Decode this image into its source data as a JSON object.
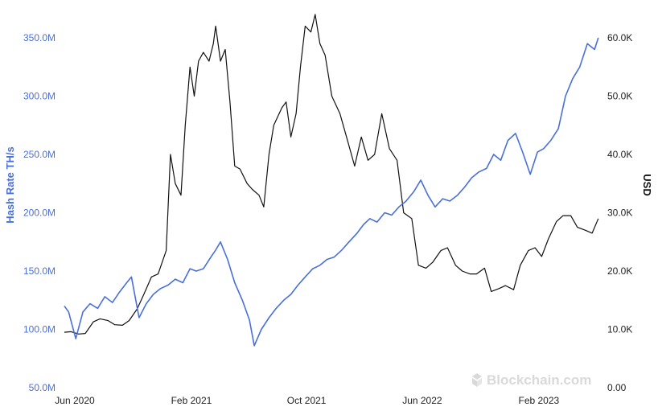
{
  "chart_data": {
    "type": "line",
    "watermark": "Blockchain.com",
    "y_left": {
      "label": "Hash Rate TH/s",
      "ticks": [
        "50.0M",
        "100.0M",
        "150.0M",
        "200.0M",
        "250.0M",
        "300.0M",
        "350.0M"
      ],
      "ylim": [
        50,
        350
      ],
      "color": "#4a6fd8"
    },
    "y_right": {
      "label": "USD",
      "ticks": [
        "0.00",
        "10.0K",
        "20.0K",
        "30.0K",
        "40.0K",
        "50.0K",
        "60.0K"
      ],
      "ylim": [
        0,
        60
      ],
      "color": "#111111"
    },
    "x_axis": {
      "ticks": [
        "Jun 2020",
        "Feb 2021",
        "Oct 2021",
        "Jun 2022",
        "Feb 2023"
      ],
      "xlim": [
        "2020-06-01",
        "2023-06-30"
      ]
    },
    "series": [
      {
        "name": "Hash Rate TH/s",
        "axis": "left",
        "color": "#4a6fd8",
        "x": [
          "2020-06-01",
          "2020-06-10",
          "2020-06-25",
          "2020-07-10",
          "2020-07-25",
          "2020-08-10",
          "2020-08-25",
          "2020-09-10",
          "2020-09-25",
          "2020-10-10",
          "2020-10-20",
          "2020-11-05",
          "2020-11-20",
          "2020-12-05",
          "2020-12-20",
          "2021-01-05",
          "2021-01-20",
          "2021-02-05",
          "2021-02-20",
          "2021-03-05",
          "2021-03-20",
          "2021-04-05",
          "2021-04-15",
          "2021-04-25",
          "2021-05-10",
          "2021-05-25",
          "2021-06-10",
          "2021-06-25",
          "2021-07-05",
          "2021-07-20",
          "2021-08-05",
          "2021-08-20",
          "2021-09-05",
          "2021-09-20",
          "2021-10-05",
          "2021-10-20",
          "2021-11-05",
          "2021-11-20",
          "2021-12-05",
          "2021-12-20",
          "2022-01-05",
          "2022-01-20",
          "2022-02-05",
          "2022-02-20",
          "2022-03-05",
          "2022-03-20",
          "2022-04-05",
          "2022-04-20",
          "2022-05-05",
          "2022-05-20",
          "2022-06-05",
          "2022-06-20",
          "2022-07-05",
          "2022-07-20",
          "2022-08-05",
          "2022-08-20",
          "2022-09-05",
          "2022-09-20",
          "2022-10-05",
          "2022-10-20",
          "2022-11-05",
          "2022-11-20",
          "2022-12-05",
          "2022-12-20",
          "2023-01-05",
          "2023-01-20",
          "2023-02-05",
          "2023-02-20",
          "2023-03-05",
          "2023-03-20",
          "2023-04-05",
          "2023-04-20",
          "2023-05-05",
          "2023-05-20",
          "2023-06-05",
          "2023-06-20",
          "2023-06-28"
        ],
        "values": [
          120,
          115,
          92,
          115,
          122,
          118,
          128,
          123,
          132,
          140,
          145,
          110,
          122,
          130,
          135,
          138,
          143,
          140,
          152,
          150,
          152,
          162,
          168,
          175,
          160,
          140,
          125,
          108,
          86,
          100,
          110,
          118,
          125,
          130,
          138,
          145,
          152,
          155,
          160,
          162,
          168,
          175,
          182,
          190,
          195,
          192,
          200,
          198,
          205,
          210,
          218,
          228,
          215,
          205,
          212,
          210,
          215,
          222,
          230,
          235,
          238,
          250,
          245,
          262,
          268,
          252,
          233,
          252,
          255,
          262,
          272,
          300,
          315,
          325,
          345,
          340,
          350
        ]
      },
      {
        "name": "USD",
        "axis": "right",
        "color": "#111111",
        "x": [
          "2020-06-01",
          "2020-06-15",
          "2020-07-01",
          "2020-07-15",
          "2020-08-01",
          "2020-08-15",
          "2020-09-01",
          "2020-09-15",
          "2020-10-01",
          "2020-10-15",
          "2020-11-01",
          "2020-11-15",
          "2020-12-01",
          "2020-12-15",
          "2021-01-01",
          "2021-01-10",
          "2021-01-20",
          "2021-02-01",
          "2021-02-10",
          "2021-02-20",
          "2021-03-01",
          "2021-03-10",
          "2021-03-20",
          "2021-04-01",
          "2021-04-10",
          "2021-04-15",
          "2021-04-25",
          "2021-05-05",
          "2021-05-15",
          "2021-05-25",
          "2021-06-05",
          "2021-06-20",
          "2021-07-01",
          "2021-07-15",
          "2021-07-25",
          "2021-08-05",
          "2021-08-15",
          "2021-09-01",
          "2021-09-10",
          "2021-09-20",
          "2021-10-01",
          "2021-10-10",
          "2021-10-20",
          "2021-11-01",
          "2021-11-10",
          "2021-11-20",
          "2021-12-01",
          "2021-12-15",
          "2022-01-01",
          "2022-01-15",
          "2022-02-01",
          "2022-02-15",
          "2022-03-01",
          "2022-03-15",
          "2022-03-30",
          "2022-04-15",
          "2022-05-01",
          "2022-05-15",
          "2022-06-01",
          "2022-06-15",
          "2022-07-01",
          "2022-07-15",
          "2022-08-01",
          "2022-08-15",
          "2022-09-01",
          "2022-09-15",
          "2022-10-01",
          "2022-10-15",
          "2022-11-01",
          "2022-11-15",
          "2022-12-01",
          "2022-12-15",
          "2023-01-01",
          "2023-01-15",
          "2023-02-01",
          "2023-02-15",
          "2023-03-01",
          "2023-03-15",
          "2023-04-01",
          "2023-04-15",
          "2023-05-01",
          "2023-05-15",
          "2023-06-01",
          "2023-06-15",
          "2023-06-28"
        ],
        "values": [
          9.5,
          9.6,
          9.2,
          9.3,
          11.3,
          11.8,
          11.5,
          10.8,
          10.7,
          11.5,
          13.5,
          16.0,
          19.0,
          19.5,
          23.5,
          40.0,
          35.0,
          33.0,
          45.0,
          55.0,
          50.0,
          56.0,
          57.5,
          56.0,
          59.0,
          62.0,
          56.0,
          58.0,
          49.0,
          38.0,
          37.5,
          35.0,
          34.0,
          33.0,
          31.0,
          40.0,
          45.0,
          48.0,
          49.0,
          43.0,
          47.0,
          55.0,
          62.0,
          61.0,
          64.0,
          59.0,
          57.0,
          50.0,
          47.0,
          43.0,
          38.0,
          43.0,
          39.0,
          40.0,
          47.0,
          41.0,
          39.0,
          30.0,
          29.0,
          21.0,
          20.5,
          21.5,
          23.5,
          24.0,
          21.0,
          20.0,
          19.5,
          19.5,
          20.5,
          16.5,
          17.0,
          17.5,
          16.8,
          21.0,
          23.5,
          24.0,
          22.5,
          25.5,
          28.5,
          29.5,
          29.5,
          27.5,
          27.0,
          26.5,
          29.0
        ]
      }
    ]
  }
}
